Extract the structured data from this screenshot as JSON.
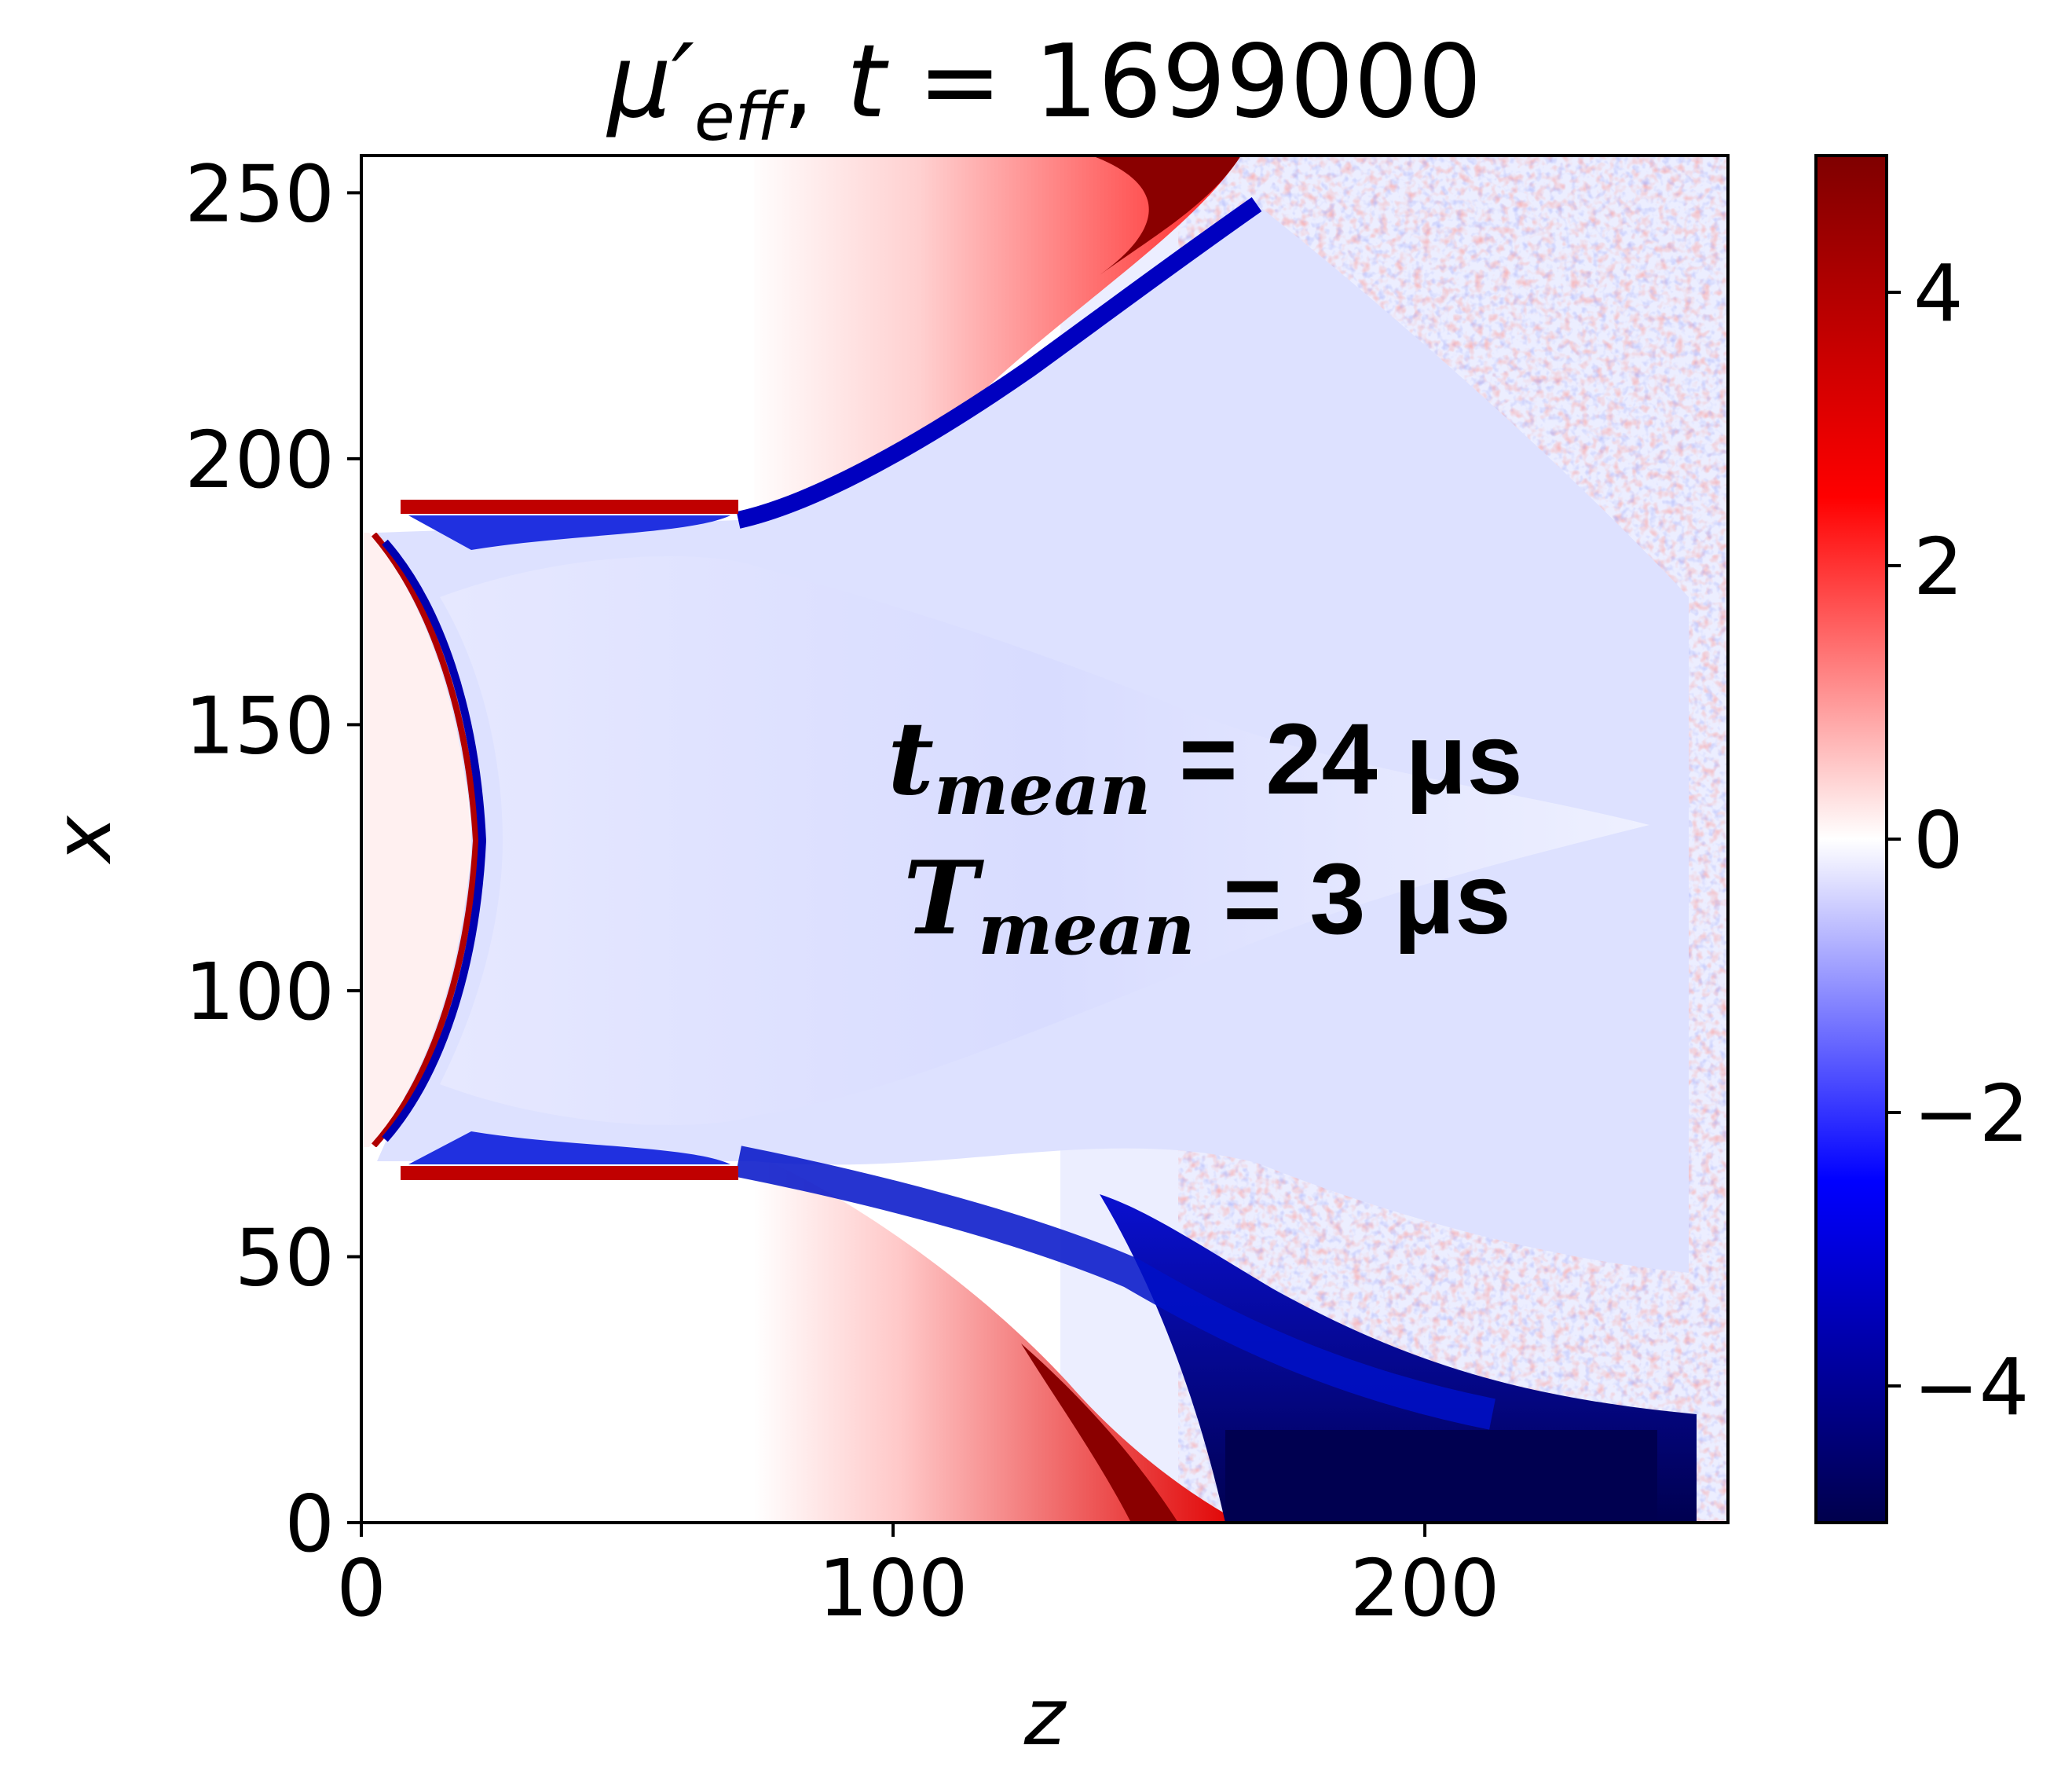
{
  "chart_data": {
    "type": "heatmap",
    "title": {
      "symbol": "μ′",
      "subscript": "eff",
      "separator": ", ",
      "time_var": "t",
      "equals": " = ",
      "time_value": "1699000"
    },
    "xlabel": "z",
    "ylabel": "x",
    "xlim": [
      0,
      257
    ],
    "ylim": [
      0,
      257
    ],
    "x_ticks": [
      0,
      100,
      200
    ],
    "x_tick_labels": [
      "0",
      "100",
      "200"
    ],
    "y_ticks": [
      0,
      50,
      100,
      150,
      200,
      250
    ],
    "y_tick_labels": [
      "0",
      "50",
      "100",
      "150",
      "200",
      "250"
    ],
    "colorbar": {
      "colormap": "seismic",
      "range": [
        -5,
        5
      ],
      "ticks": [
        4,
        2,
        0,
        -2,
        -4
      ],
      "tick_labels": [
        "4",
        "2",
        "0",
        "−2",
        "−4"
      ]
    },
    "colormap_stops": [
      "#00004c",
      "#0000ff",
      "#ffffff",
      "#ff0000",
      "#7f0000"
    ],
    "annotations": [
      {
        "var": "t",
        "sub": "mean",
        "eq": " = ",
        "value": "24 μs"
      },
      {
        "var": "T",
        "sub": "mean",
        "eq": " = ",
        "value": "3 μs"
      }
    ]
  }
}
